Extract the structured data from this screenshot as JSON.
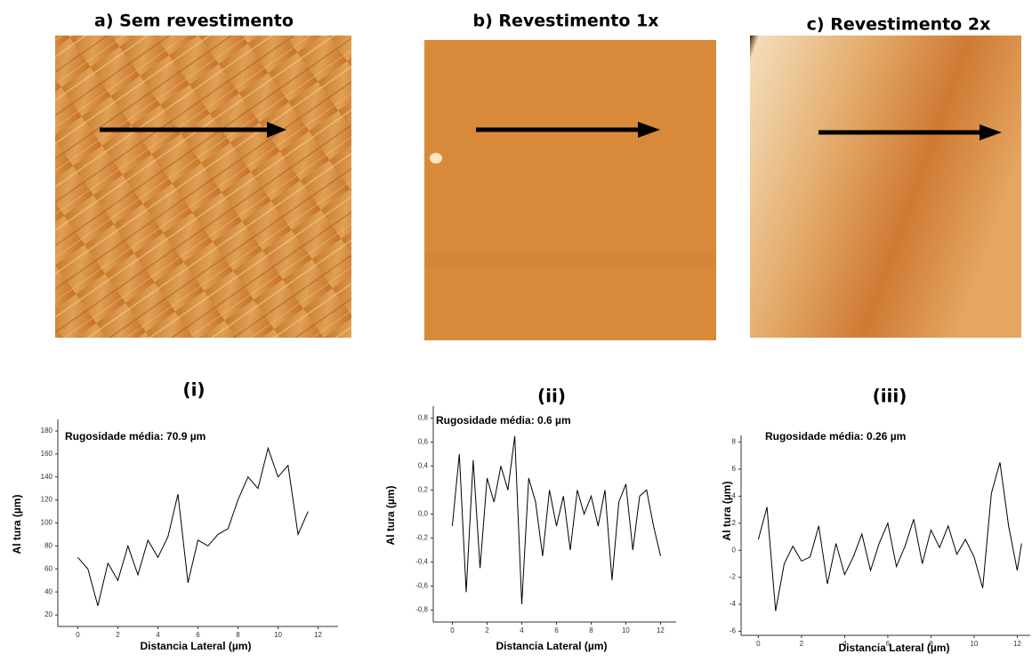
{
  "images": [
    {
      "title": "a) Sem revestimento"
    },
    {
      "title": "b) Revestimento 1x"
    },
    {
      "title": "c) Revestimento 2x"
    }
  ],
  "chart_data": [
    {
      "type": "line",
      "title": "(i)",
      "annotation": "Rugosidade média: 70.9 µm",
      "x_label": "Distancia Lateral (µm)",
      "y_label": "Al tura (µm)",
      "xlim": [
        -1,
        13
      ],
      "ylim": [
        10,
        190
      ],
      "xticks": [
        0,
        2,
        4,
        6,
        8,
        10,
        12
      ],
      "yticks": [
        20,
        40,
        60,
        80,
        100,
        120,
        140,
        160,
        180
      ],
      "color": "#000000",
      "x": [
        0,
        0.5,
        1,
        1.5,
        2,
        2.5,
        3,
        3.5,
        4,
        4.5,
        5,
        5.5,
        6,
        6.5,
        7,
        7.5,
        8,
        8.5,
        9,
        9.5,
        10,
        10.5,
        11,
        11.5
      ],
      "values": [
        70,
        60,
        28,
        65,
        50,
        80,
        55,
        85,
        70,
        88,
        125,
        48,
        85,
        80,
        90,
        95,
        120,
        140,
        130,
        165,
        140,
        150,
        90,
        110
      ]
    },
    {
      "type": "line",
      "title": "(ii)",
      "annotation": "Rugosidade média: 0.6 µm",
      "x_label": "Distancia Lateral (µm)",
      "y_label": "Al tura (µm)",
      "xlim": [
        -1.1,
        12.9
      ],
      "ylim": [
        -0.9,
        0.9
      ],
      "xticks": [
        0,
        2,
        4,
        6,
        8,
        10,
        12
      ],
      "yticks": [
        {
          "value": -0.8,
          "label": "-0,8"
        },
        {
          "value": -0.6,
          "label": "-0,6"
        },
        {
          "value": -0.4,
          "label": "-0,4"
        },
        {
          "value": -0.2,
          "label": "-0,2"
        },
        {
          "value": 0,
          "label": "0,0"
        },
        {
          "value": 0.2,
          "label": "0,2"
        },
        {
          "value": 0.4,
          "label": "0,4"
        },
        {
          "value": 0.6,
          "label": "0,6"
        },
        {
          "value": 0.8,
          "label": "0,8"
        }
      ],
      "color": "#000000",
      "x": [
        0,
        0.4,
        0.8,
        1.2,
        1.6,
        2.0,
        2.4,
        2.8,
        3.2,
        3.6,
        4.0,
        4.4,
        4.8,
        5.2,
        5.6,
        6.0,
        6.4,
        6.8,
        7.2,
        7.6,
        8.0,
        8.4,
        8.8,
        9.2,
        9.6,
        10.0,
        10.4,
        10.8,
        11.2,
        11.6,
        12.0
      ],
      "values": [
        -0.1,
        0.5,
        -0.65,
        0.45,
        -0.45,
        0.3,
        0.1,
        0.4,
        0.2,
        0.65,
        -0.75,
        0.3,
        0.1,
        -0.35,
        0.2,
        -0.1,
        0.15,
        -0.3,
        0.2,
        0.0,
        0.15,
        -0.1,
        0.2,
        -0.55,
        0.1,
        0.25,
        -0.3,
        0.15,
        0.2,
        -0.1,
        -0.35
      ]
    },
    {
      "type": "line",
      "title": "(iii)",
      "annotation": "Rugosidade média: 0.26 µm",
      "x_label": "Distancia Lateral (µm)",
      "y_label": "Al tura (µm)",
      "xlim": [
        -0.8,
        12.6
      ],
      "ylim": [
        -6.3,
        8.5
      ],
      "xticks": [
        0,
        2,
        4,
        6,
        8,
        10,
        12
      ],
      "yticks": [
        -6,
        -4,
        -2,
        0,
        2,
        4,
        6,
        8
      ],
      "color": "#000000",
      "x": [
        0,
        0.4,
        0.8,
        1.2,
        1.6,
        2.0,
        2.4,
        2.8,
        3.2,
        3.6,
        4.0,
        4.4,
        4.8,
        5.2,
        5.6,
        6.0,
        6.4,
        6.8,
        7.2,
        7.6,
        8.0,
        8.4,
        8.8,
        9.2,
        9.6,
        10.0,
        10.4,
        10.8,
        11.2,
        11.6,
        12.0,
        12.2
      ],
      "values": [
        0.8,
        3.2,
        -4.5,
        -1,
        0.3,
        -0.8,
        -0.5,
        1.8,
        -2.5,
        0.5,
        -1.8,
        -0.5,
        1.2,
        -1.5,
        0.5,
        2.0,
        -1.2,
        0.3,
        2.3,
        -1.0,
        1.5,
        0.2,
        1.8,
        -0.3,
        0.8,
        -0.5,
        -2.8,
        4.2,
        6.5,
        1.8,
        -1.5,
        0.5
      ]
    }
  ]
}
